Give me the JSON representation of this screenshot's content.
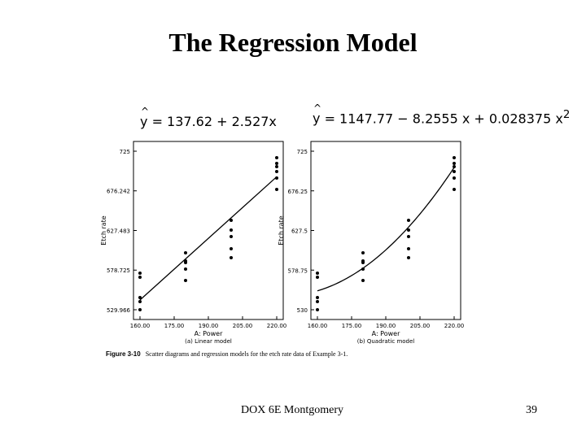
{
  "slide": {
    "title": "The Regression Model",
    "footer": "DOX 6E Montgomery",
    "page_number": "39"
  },
  "figure": {
    "caption_label": "Figure 3-10",
    "caption_text": "Scatter diagrams and regression models for the etch rate data of Example 3-1."
  },
  "equations": {
    "linear": {
      "lhs": "y",
      "rhs": "= 137.62 + 2.527x"
    },
    "quadratic": {
      "lhs": "y",
      "rhs": "= 1147.77 − 8.2555 x + 0.028375 x",
      "sup": "2"
    }
  },
  "chart_data": [
    {
      "type": "scatter",
      "title": "",
      "subtitle": "(a) Linear model",
      "xlabel": "A: Power",
      "ylabel": "Etch rate",
      "xlim": [
        160,
        220
      ],
      "ylim": [
        529.966,
        725
      ],
      "xticks": [
        160,
        175,
        190,
        205,
        220
      ],
      "xtick_labels": [
        "160.00",
        "175.00",
        "190.00",
        "205.00",
        "220.00"
      ],
      "yticks": [
        529.966,
        578.725,
        627.483,
        676.242,
        725
      ],
      "ytick_labels": [
        "529.966",
        "578.725",
        "627.483",
        "676.242",
        "725"
      ],
      "points": [
        {
          "x": 160,
          "y": 575
        },
        {
          "x": 160,
          "y": 570
        },
        {
          "x": 160,
          "y": 545
        },
        {
          "x": 160,
          "y": 540
        },
        {
          "x": 160,
          "y": 530
        },
        {
          "x": 180,
          "y": 600
        },
        {
          "x": 180,
          "y": 590
        },
        {
          "x": 180,
          "y": 588
        },
        {
          "x": 180,
          "y": 580
        },
        {
          "x": 180,
          "y": 566
        },
        {
          "x": 200,
          "y": 640
        },
        {
          "x": 200,
          "y": 628
        },
        {
          "x": 200,
          "y": 620
        },
        {
          "x": 200,
          "y": 605
        },
        {
          "x": 200,
          "y": 594
        },
        {
          "x": 220,
          "y": 717
        },
        {
          "x": 220,
          "y": 710
        },
        {
          "x": 220,
          "y": 706
        },
        {
          "x": 220,
          "y": 700
        },
        {
          "x": 220,
          "y": 692
        },
        {
          "x": 220,
          "y": 678
        }
      ],
      "fit_line": {
        "label": "137.62 + 2.527x",
        "x": [
          160,
          220
        ],
        "y": [
          541.94,
          693.56
        ]
      }
    },
    {
      "type": "scatter",
      "title": "",
      "subtitle": "(b) Quadratic model",
      "xlabel": "A: Power",
      "ylabel": "Etch rate",
      "xlim": [
        160,
        220
      ],
      "ylim": [
        530,
        725
      ],
      "xticks": [
        160,
        175,
        190,
        205,
        220
      ],
      "xtick_labels": [
        "160.00",
        "175.00",
        "190.00",
        "205.00",
        "220.00"
      ],
      "yticks": [
        530,
        578.75,
        627.5,
        676.25,
        725
      ],
      "ytick_labels": [
        "530",
        "578.75",
        "627.5",
        "676.25",
        "725"
      ],
      "points": [
        {
          "x": 160,
          "y": 575
        },
        {
          "x": 160,
          "y": 570
        },
        {
          "x": 160,
          "y": 545
        },
        {
          "x": 160,
          "y": 540
        },
        {
          "x": 160,
          "y": 530
        },
        {
          "x": 180,
          "y": 600
        },
        {
          "x": 180,
          "y": 590
        },
        {
          "x": 180,
          "y": 588
        },
        {
          "x": 180,
          "y": 580
        },
        {
          "x": 180,
          "y": 566
        },
        {
          "x": 200,
          "y": 640
        },
        {
          "x": 200,
          "y": 628
        },
        {
          "x": 200,
          "y": 620
        },
        {
          "x": 200,
          "y": 605
        },
        {
          "x": 200,
          "y": 594
        },
        {
          "x": 220,
          "y": 717
        },
        {
          "x": 220,
          "y": 710
        },
        {
          "x": 220,
          "y": 706
        },
        {
          "x": 220,
          "y": 700
        },
        {
          "x": 220,
          "y": 692
        },
        {
          "x": 220,
          "y": 678
        }
      ],
      "fit_curve": {
        "label": "1147.77 - 8.2555x + 0.028375x^2",
        "a": 1147.77,
        "b": -8.2555,
        "c": 0.028375
      }
    }
  ]
}
